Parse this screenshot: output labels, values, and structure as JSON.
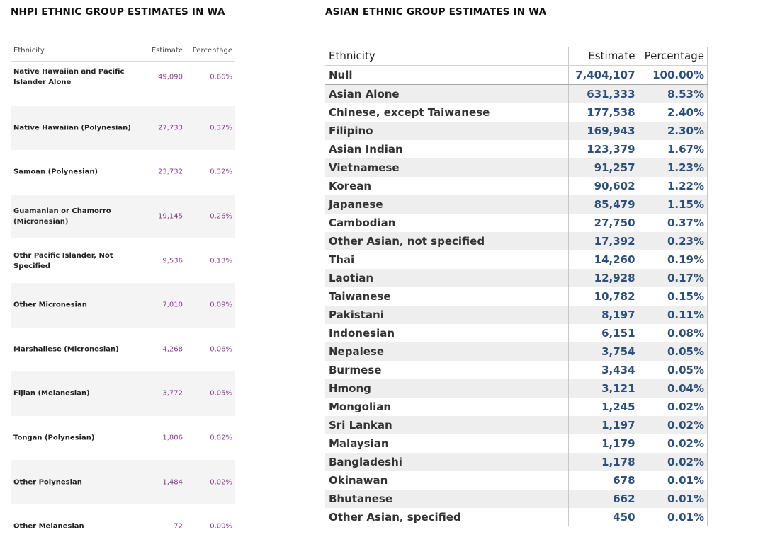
{
  "nhpi": {
    "title": "NHPI ETHNIC GROUP ESTIMATES IN WA",
    "columns": {
      "ethnicity": "Ethnicity",
      "estimate": "Estimate",
      "percentage": "Percentage"
    },
    "colors": {
      "value": "#8b3b8f"
    }
  },
  "asian": {
    "title": "ASIAN  ETHNIC GROUP ESTIMATES IN WA",
    "columns": {
      "ethnicity": "Ethnicity",
      "estimate": "Estimate",
      "percentage": "Percentage"
    },
    "colors": {
      "value": "#2c4f7c"
    }
  },
  "chart_data": [
    {
      "type": "table",
      "title": "NHPI ETHNIC GROUP ESTIMATES IN WA",
      "columns": [
        "Ethnicity",
        "Estimate",
        "Percentage"
      ],
      "rows": [
        [
          "Native Hawaiian and Pacific Islander Alone",
          "49,090",
          "0.66%"
        ],
        [
          "Native Hawaiian (Polynesian)",
          "27,733",
          "0.37%"
        ],
        [
          "Samoan (Polynesian)",
          "23,732",
          "0.32%"
        ],
        [
          "Guamanian or Chamorro (Micronesian)",
          "19,145",
          "0.26%"
        ],
        [
          "Othr Pacific Islander, Not Specified",
          "9,536",
          "0.13%"
        ],
        [
          "Other Micronesian",
          "7,010",
          "0.09%"
        ],
        [
          "Marshallese (Micronesian)",
          "4,268",
          "0.06%"
        ],
        [
          "Fijian (Melanesian)",
          "3,772",
          "0.05%"
        ],
        [
          "Tongan (Polynesian)",
          "1,806",
          "0.02%"
        ],
        [
          "Other Polynesian",
          "1,484",
          "0.02%"
        ],
        [
          "Other Melanesian",
          "72",
          "0.00%"
        ]
      ]
    },
    {
      "type": "table",
      "title": "ASIAN  ETHNIC GROUP ESTIMATES IN WA",
      "columns": [
        "Ethnicity",
        "Estimate",
        "Percentage"
      ],
      "rows": [
        [
          "Null",
          "7,404,107",
          "100.00%"
        ],
        [
          "Asian Alone",
          "631,333",
          "8.53%"
        ],
        [
          "Chinese, except Taiwanese",
          "177,538",
          "2.40%"
        ],
        [
          "Filipino",
          "169,943",
          "2.30%"
        ],
        [
          "Asian Indian",
          "123,379",
          "1.67%"
        ],
        [
          "Vietnamese",
          "91,257",
          "1.23%"
        ],
        [
          "Korean",
          "90,602",
          "1.22%"
        ],
        [
          "Japanese",
          "85,479",
          "1.15%"
        ],
        [
          "Cambodian",
          "27,750",
          "0.37%"
        ],
        [
          "Other Asian, not specified",
          "17,392",
          "0.23%"
        ],
        [
          "Thai",
          "14,260",
          "0.19%"
        ],
        [
          "Laotian",
          "12,928",
          "0.17%"
        ],
        [
          "Taiwanese",
          "10,782",
          "0.15%"
        ],
        [
          "Pakistani",
          "8,197",
          "0.11%"
        ],
        [
          "Indonesian",
          "6,151",
          "0.08%"
        ],
        [
          "Nepalese",
          "3,754",
          "0.05%"
        ],
        [
          "Burmese",
          "3,434",
          "0.05%"
        ],
        [
          "Hmong",
          "3,121",
          "0.04%"
        ],
        [
          "Mongolian",
          "1,245",
          "0.02%"
        ],
        [
          "Sri Lankan",
          "1,197",
          "0.02%"
        ],
        [
          "Malaysian",
          "1,179",
          "0.02%"
        ],
        [
          "Bangladeshi",
          "1,178",
          "0.02%"
        ],
        [
          "Okinawan",
          "678",
          "0.01%"
        ],
        [
          "Bhutanese",
          "662",
          "0.01%"
        ],
        [
          "Other Asian, specified",
          "450",
          "0.01%"
        ]
      ]
    }
  ]
}
